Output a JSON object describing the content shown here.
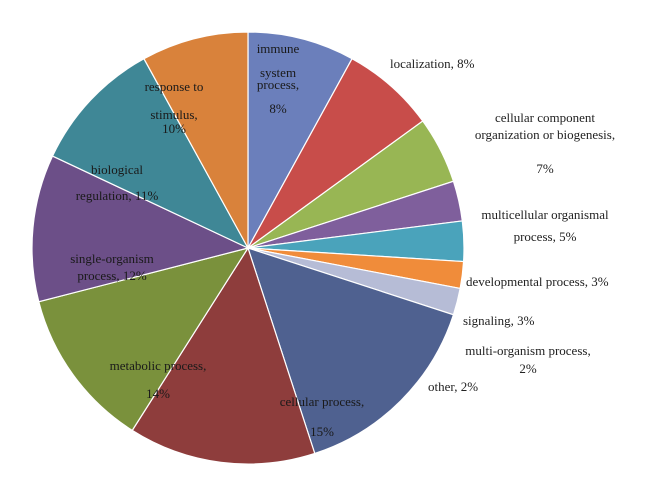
{
  "chart_data": {
    "type": "pie",
    "title": "",
    "start_angle_deg": 0,
    "direction": "clockwise",
    "slices": [
      {
        "label_lines": [
          "localization, 8%"
        ],
        "value": 8,
        "color": "#6b7fbb"
      },
      {
        "label_lines": [
          "cellular component",
          "organization or biogenesis,",
          "",
          "7%"
        ],
        "value": 7,
        "color": "#c84d4a"
      },
      {
        "label_lines": [
          "multicellular organismal",
          "process, 5%"
        ],
        "value": 5,
        "color": "#98b654"
      },
      {
        "label_lines": [
          "developmental process, 3%"
        ],
        "value": 3,
        "color": "#7f5f9c"
      },
      {
        "label_lines": [
          "signaling, 3%"
        ],
        "value": 3,
        "color": "#4aa3bb"
      },
      {
        "label_lines": [
          "multi-organism process,",
          "2%"
        ],
        "value": 2,
        "color": "#f08c3a"
      },
      {
        "label_lines": [
          "other, 2%"
        ],
        "value": 2,
        "color": "#b6bcd6"
      },
      {
        "label_lines": [
          "cellular process,",
          "",
          "15%"
        ],
        "value": 15,
        "color": "#4f6190"
      },
      {
        "label_lines": [
          "metabolic process,",
          "",
          "14%"
        ],
        "value": 14,
        "color": "#8e3d3c"
      },
      {
        "label_lines": [
          "single-organism",
          "process, 12%"
        ],
        "value": 12,
        "color": "#7a913c"
      },
      {
        "label_lines": [
          "biological",
          "",
          "regulation, 11%"
        ],
        "value": 11,
        "color": "#6c4f88"
      },
      {
        "label_lines": [
          "response to",
          "",
          "stimulus,",
          "10%"
        ],
        "value": 10,
        "color": "#3f8796"
      },
      {
        "label_lines": [
          "immune",
          "",
          "system",
          "process,",
          "",
          "8%"
        ],
        "value": 8,
        "color": "#d9823b"
      }
    ]
  }
}
